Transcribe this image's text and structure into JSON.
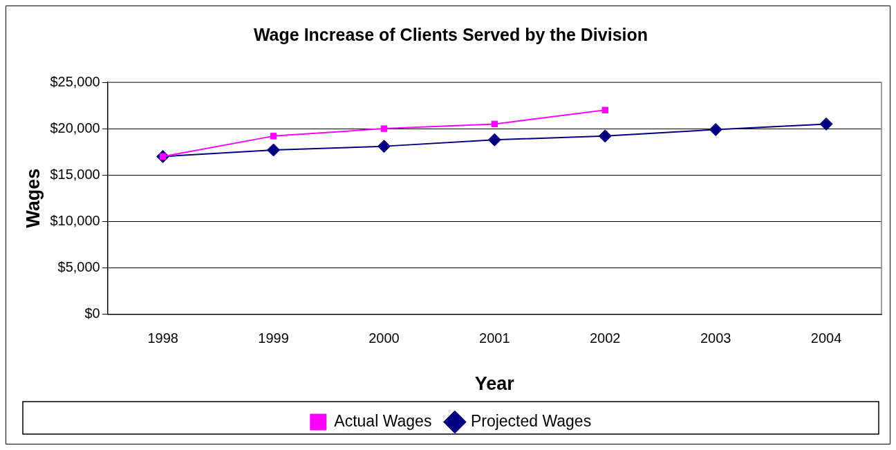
{
  "chart_data": {
    "type": "line",
    "title": "Wage Increase of Clients Served by the Division",
    "xlabel": "Year",
    "ylabel": "Wages",
    "categories": [
      "1998",
      "1999",
      "2000",
      "2001",
      "2002",
      "2003",
      "2004"
    ],
    "series": [
      {
        "name": "Actual Wages",
        "color": "#ff00ff",
        "marker": "square",
        "values": [
          17000,
          19200,
          20000,
          20500,
          22000,
          null,
          null
        ]
      },
      {
        "name": "Projected Wages",
        "color": "#000080",
        "marker": "diamond",
        "values": [
          17000,
          17700,
          18100,
          18800,
          19200,
          19900,
          20500
        ]
      }
    ],
    "ylim": [
      0,
      25000
    ],
    "yticks": [
      {
        "value": 0,
        "label": "$0"
      },
      {
        "value": 5000,
        "label": "$5,000"
      },
      {
        "value": 10000,
        "label": "$10,000"
      },
      {
        "value": 15000,
        "label": "$15,000"
      },
      {
        "value": 20000,
        "label": "$20,000"
      },
      {
        "value": 25000,
        "label": "$25,000"
      }
    ],
    "grid": "y",
    "legend": "bottom",
    "line_style": "solid"
  }
}
